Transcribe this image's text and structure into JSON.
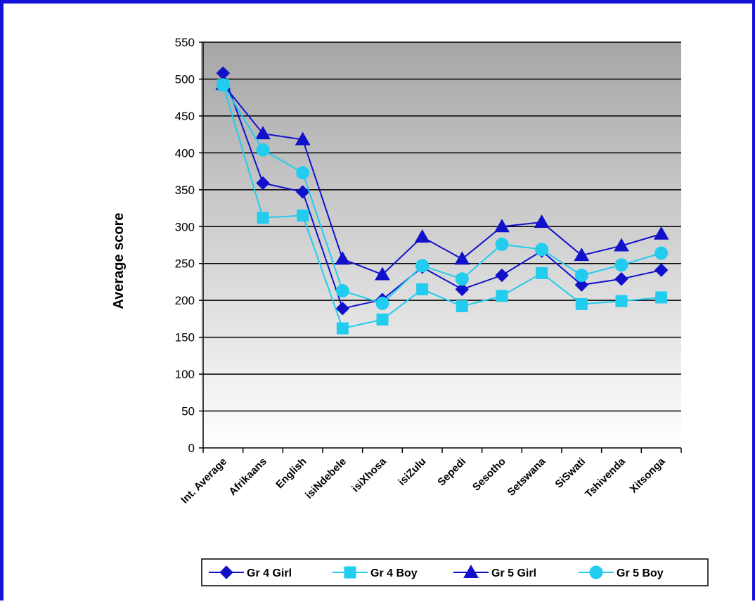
{
  "chart_data": {
    "type": "line",
    "title": "",
    "xlabel": "",
    "ylabel": "Average score",
    "ylim": [
      0,
      550
    ],
    "yticks": [
      0,
      50,
      100,
      150,
      200,
      250,
      300,
      350,
      400,
      450,
      500,
      550
    ],
    "grid": true,
    "legend_position": "bottom",
    "categories": [
      "Int. Average",
      "Afrikaans",
      "English",
      "isiNdebele",
      "isiXhosa",
      "isiZulu",
      "Sepedi",
      "Sesotho",
      "Setswana",
      "SiSwati",
      "Tshivenda",
      "Xitsonga"
    ],
    "series": [
      {
        "name": "Gr 4 Girl",
        "marker": "diamond",
        "color": "#1111cc",
        "values": [
          508,
          359,
          347,
          189,
          201,
          245,
          215,
          234,
          267,
          221,
          229,
          241
        ]
      },
      {
        "name": "Gr 4 Boy",
        "marker": "square",
        "color": "#22ccee",
        "values": [
          492,
          312,
          315,
          162,
          174,
          215,
          192,
          206,
          237,
          195,
          199,
          204
        ]
      },
      {
        "name": "Gr 5 Girl",
        "marker": "triangle",
        "color": "#1111cc",
        "values": [
          493,
          426,
          418,
          256,
          235,
          286,
          256,
          300,
          306,
          261,
          274,
          290
        ]
      },
      {
        "name": "Gr 5 Boy",
        "marker": "circle",
        "color": "#22ccee",
        "values": [
          492,
          404,
          373,
          213,
          196,
          247,
          229,
          276,
          269,
          234,
          248,
          264
        ]
      }
    ]
  }
}
